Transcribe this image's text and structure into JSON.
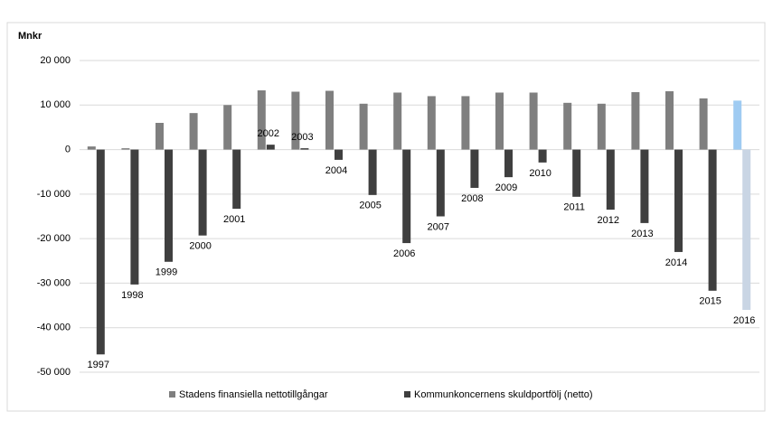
{
  "chart_data": {
    "type": "bar",
    "y_label": "Mnkr",
    "categories": [
      "1997",
      "1998",
      "1999",
      "2000",
      "2001",
      "2002",
      "2003",
      "2004",
      "2005",
      "2006",
      "2007",
      "2008",
      "2009",
      "2010",
      "2011",
      "2012",
      "2013",
      "2014",
      "2015",
      "2016"
    ],
    "series": [
      {
        "name": "Stadens finansiella nettotillgångar",
        "color": "#7f7f7f",
        "colors": [
          "#7f7f7f",
          "#7f7f7f",
          "#7f7f7f",
          "#7f7f7f",
          "#7f7f7f",
          "#7f7f7f",
          "#7f7f7f",
          "#7f7f7f",
          "#7f7f7f",
          "#7f7f7f",
          "#7f7f7f",
          "#7f7f7f",
          "#7f7f7f",
          "#7f7f7f",
          "#7f7f7f",
          "#7f7f7f",
          "#7f7f7f",
          "#7f7f7f",
          "#7f7f7f",
          "#9fcbf2"
        ],
        "values": [
          700,
          300,
          6000,
          8200,
          10000,
          13300,
          13000,
          13200,
          10300,
          12800,
          12000,
          12000,
          12800,
          12800,
          10500,
          10300,
          12900,
          13100,
          11500,
          11000
        ]
      },
      {
        "name": "Kommunkoncernens skuldportfölj (netto)",
        "color": "#3f3f3f",
        "colors": [
          "#3f3f3f",
          "#3f3f3f",
          "#3f3f3f",
          "#3f3f3f",
          "#3f3f3f",
          "#3f3f3f",
          "#3f3f3f",
          "#3f3f3f",
          "#3f3f3f",
          "#3f3f3f",
          "#3f3f3f",
          "#3f3f3f",
          "#3f3f3f",
          "#3f3f3f",
          "#3f3f3f",
          "#3f3f3f",
          "#3f3f3f",
          "#3f3f3f",
          "#3f3f3f",
          "#c9d5e4"
        ],
        "values": [
          -46000,
          -30300,
          -25200,
          -19300,
          -13300,
          1100,
          300,
          -2300,
          -10200,
          -21000,
          -15000,
          -8600,
          -6200,
          -2900,
          -10600,
          -13500,
          -16500,
          -23000,
          -31700,
          -36000
        ]
      }
    ],
    "ylim": [
      -50000,
      20000
    ],
    "yticks": [
      {
        "value": -50000,
        "label": "-50 000"
      },
      {
        "value": -40000,
        "label": "-40 000"
      },
      {
        "value": -30000,
        "label": "-30 000"
      },
      {
        "value": -20000,
        "label": "-20 000"
      },
      {
        "value": -10000,
        "label": "-10 000"
      },
      0,
      {
        "value": 10000,
        "label": "10 000"
      },
      {
        "value": 20000,
        "label": "20 000"
      }
    ],
    "grid": true
  }
}
